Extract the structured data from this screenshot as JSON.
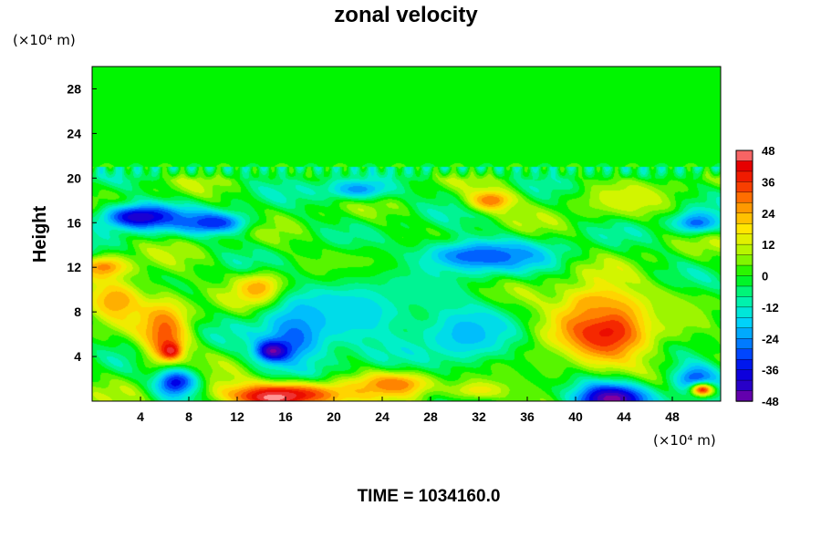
{
  "chart_data": {
    "type": "heatmap",
    "title": "zonal velocity",
    "xlabel": "",
    "ylabel": "Height",
    "x_unit": "(×10⁴ m)",
    "y_unit": "(×10⁴ m)",
    "xlim": [
      0,
      52
    ],
    "ylim": [
      0,
      30
    ],
    "x_ticks": [
      4,
      8,
      12,
      16,
      20,
      24,
      28,
      32,
      36,
      40,
      44,
      48
    ],
    "y_ticks": [
      4,
      8,
      12,
      16,
      20,
      24,
      28
    ],
    "colorbar": {
      "min": -48,
      "max": 48,
      "step": 4,
      "tick_labels": [
        48,
        36,
        24,
        12,
        0,
        -12,
        -24,
        -36,
        -48
      ]
    },
    "stratosphere_value": 0,
    "tropopause_height": 21,
    "features": [
      {
        "x": 4,
        "y": 16.5,
        "rx": 3.5,
        "ry": 1.2,
        "value": -42
      },
      {
        "x": 10,
        "y": 16,
        "rx": 3,
        "ry": 1,
        "value": -34
      },
      {
        "x": 22,
        "y": 19,
        "rx": 3,
        "ry": 1,
        "value": -24
      },
      {
        "x": 33,
        "y": 18,
        "rx": 2,
        "ry": 1,
        "value": 30
      },
      {
        "x": 44,
        "y": 18,
        "rx": 4,
        "ry": 1.5,
        "value": 12
      },
      {
        "x": 50,
        "y": 16,
        "rx": 2,
        "ry": 1,
        "value": -28
      },
      {
        "x": 32,
        "y": 13,
        "rx": 6,
        "ry": 1.5,
        "value": -30
      },
      {
        "x": 1,
        "y": 12,
        "rx": 2,
        "ry": 1,
        "value": 28
      },
      {
        "x": 14,
        "y": 10,
        "rx": 2,
        "ry": 1.5,
        "value": 30
      },
      {
        "x": 22,
        "y": 12,
        "rx": 4,
        "ry": 2,
        "value": 6
      },
      {
        "x": 6,
        "y": 6,
        "rx": 2,
        "ry": 3.5,
        "value": 32
      },
      {
        "x": 6.5,
        "y": 4.5,
        "rx": 0.8,
        "ry": 0.8,
        "value": 46
      },
      {
        "x": 2,
        "y": 9,
        "rx": 2.5,
        "ry": 2,
        "value": 26
      },
      {
        "x": 17,
        "y": 6,
        "rx": 3,
        "ry": 3,
        "value": -30
      },
      {
        "x": 15,
        "y": 4.5,
        "rx": 1.5,
        "ry": 1,
        "value": -48
      },
      {
        "x": 22,
        "y": 8,
        "rx": 5,
        "ry": 3,
        "value": -18
      },
      {
        "x": 31,
        "y": 6,
        "rx": 4,
        "ry": 3,
        "value": -20
      },
      {
        "x": 42.5,
        "y": 6.5,
        "rx": 4.5,
        "ry": 3.5,
        "value": 40
      },
      {
        "x": 41.5,
        "y": 8.5,
        "rx": 2,
        "ry": 1.5,
        "value": 26
      },
      {
        "x": 48,
        "y": 8,
        "rx": 2.5,
        "ry": 2,
        "value": 6
      },
      {
        "x": 7,
        "y": 1.5,
        "rx": 2,
        "ry": 1.5,
        "value": -40
      },
      {
        "x": 16,
        "y": 0.6,
        "rx": 6,
        "ry": 1.2,
        "value": 40
      },
      {
        "x": 15,
        "y": 0.3,
        "rx": 2,
        "ry": 0.6,
        "value": 48
      },
      {
        "x": 25,
        "y": 1.5,
        "rx": 3,
        "ry": 1,
        "value": 30
      },
      {
        "x": 32,
        "y": 1,
        "rx": 3,
        "ry": 1,
        "value": 16
      },
      {
        "x": 43,
        "y": 0.2,
        "rx": 3.5,
        "ry": 1.6,
        "value": -48
      },
      {
        "x": 50,
        "y": 2,
        "rx": 2,
        "ry": 1.5,
        "value": -30
      },
      {
        "x": 50.5,
        "y": 1,
        "rx": 1,
        "ry": 0.6,
        "value": 36
      },
      {
        "x": 38,
        "y": 3,
        "rx": 2,
        "ry": 2,
        "value": 4
      },
      {
        "x": 27,
        "y": 10,
        "rx": 3,
        "ry": 1.5,
        "value": -6
      }
    ],
    "annotation": "TIME = 1034160.0"
  }
}
